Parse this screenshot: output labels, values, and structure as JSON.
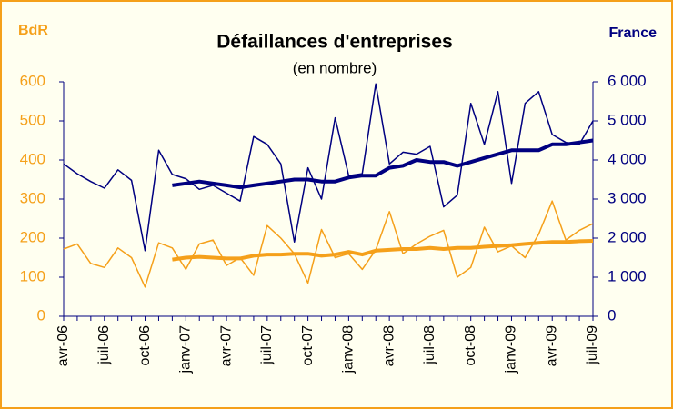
{
  "chart_data": {
    "type": "line",
    "title": "Défaillances d'entreprises",
    "subtitle": "(en nombre)",
    "y_label": "BdR",
    "y2_label": "France",
    "categories": [
      "avr-06",
      null,
      null,
      "juil-06",
      null,
      null,
      "oct-06",
      null,
      null,
      "janv-07",
      null,
      null,
      "avr-07",
      null,
      null,
      "juil-07",
      null,
      null,
      "oct-07",
      null,
      null,
      "janv-08",
      null,
      null,
      "avr-08",
      null,
      null,
      "juil-08",
      null,
      null,
      "oct-08",
      null,
      null,
      "janv-09",
      null,
      null,
      "avr-09",
      null,
      null,
      "juil-09"
    ],
    "ylim": [
      0,
      600
    ],
    "yticks": [
      0,
      100,
      200,
      300,
      400,
      500,
      600
    ],
    "y2lim": [
      0,
      6000
    ],
    "y2ticks": [
      0,
      {
        "value": 1000,
        "label": "1 000"
      },
      {
        "value": 2000,
        "label": "2 000"
      },
      {
        "value": 3000,
        "label": "3 000"
      },
      {
        "value": 4000,
        "label": "4 000"
      },
      {
        "value": 5000,
        "label": "5 000"
      },
      {
        "value": 6000,
        "label": "6 000"
      }
    ],
    "series": [
      {
        "color": "#f5a01a",
        "width": 1.5,
        "axis": "y",
        "values": [
          172,
          185,
          135,
          125,
          175,
          150,
          75,
          188,
          175,
          120,
          185,
          195,
          130,
          150,
          105,
          232,
          200,
          160,
          85,
          222,
          150,
          160,
          120,
          170,
          268,
          160,
          185,
          205,
          220,
          100,
          125,
          228,
          165,
          180,
          150,
          210,
          295,
          195,
          220,
          237
        ]
      },
      {
        "color": "#f5a01a",
        "width": 4,
        "axis": "y",
        "values": [
          null,
          null,
          null,
          null,
          null,
          null,
          null,
          null,
          145,
          150,
          152,
          150,
          148,
          148,
          155,
          158,
          158,
          160,
          160,
          155,
          158,
          165,
          158,
          168,
          170,
          172,
          172,
          175,
          172,
          175,
          175,
          178,
          180,
          182,
          185,
          188,
          190,
          190,
          192,
          193
        ]
      },
      {
        "color": "#000080",
        "width": 1.5,
        "axis": "y2",
        "values": [
          3900,
          3650,
          3450,
          3280,
          3750,
          3480,
          1680,
          4250,
          3630,
          3520,
          3250,
          3350,
          3150,
          2950,
          4600,
          4400,
          3900,
          1900,
          3800,
          3000,
          5080,
          3600,
          3650,
          5950,
          3900,
          4200,
          4150,
          4350,
          2800,
          3100,
          5450,
          4400,
          5750,
          3400,
          5450,
          5750,
          4650,
          4450,
          4400,
          5000
        ]
      },
      {
        "color": "#000080",
        "width": 4,
        "axis": "y2",
        "values": [
          null,
          null,
          null,
          null,
          null,
          null,
          null,
          null,
          3350,
          3400,
          3450,
          3400,
          3350,
          3300,
          3350,
          3400,
          3450,
          3500,
          3500,
          3450,
          3450,
          3550,
          3600,
          3600,
          3800,
          3850,
          4000,
          3950,
          3950,
          3850,
          3950,
          4050,
          4150,
          4250,
          4250,
          4250,
          4400,
          4400,
          4450,
          4500
        ]
      }
    ],
    "y_color": "#f5a01a",
    "y2_color": "#000080"
  }
}
